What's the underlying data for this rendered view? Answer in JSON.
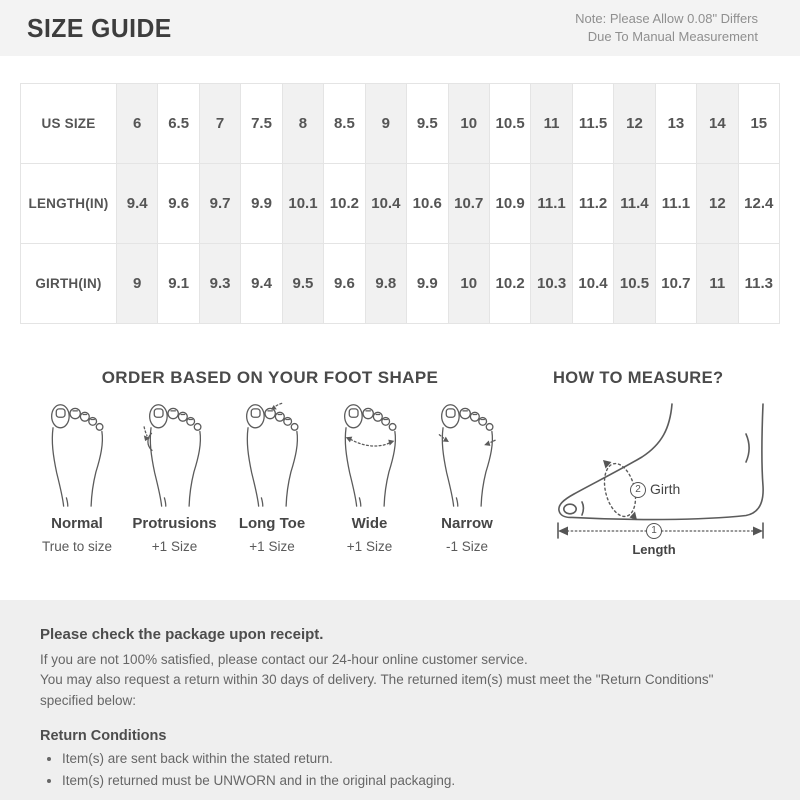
{
  "header": {
    "title": "SIZE GUIDE",
    "note_line1": "Note: Please Allow 0.08\" Differs",
    "note_line2": "Due To Manual Measurement"
  },
  "size_table": {
    "rows": [
      {
        "label": "US SIZE",
        "values": [
          "6",
          "6.5",
          "7",
          "7.5",
          "8",
          "8.5",
          "9",
          "9.5",
          "10",
          "10.5",
          "11",
          "11.5",
          "12",
          "13",
          "14",
          "15"
        ]
      },
      {
        "label": "LENGTH(IN)",
        "values": [
          "9.4",
          "9.6",
          "9.7",
          "9.9",
          "10.1",
          "10.2",
          "10.4",
          "10.6",
          "10.7",
          "10.9",
          "11.1",
          "11.2",
          "11.4",
          "11.1",
          "12",
          "12.4"
        ]
      },
      {
        "label": "GIRTH(IN)",
        "values": [
          "9",
          "9.1",
          "9.3",
          "9.4",
          "9.5",
          "9.6",
          "9.8",
          "9.9",
          "10",
          "10.2",
          "10.3",
          "10.4",
          "10.5",
          "10.7",
          "11",
          "11.3"
        ]
      }
    ]
  },
  "foot_shapes": {
    "heading": "ORDER BASED ON YOUR FOOT SHAPE",
    "items": [
      {
        "name": "Normal",
        "advice": "True to size",
        "icon": "foot-normal-icon"
      },
      {
        "name": "Protrusions",
        "advice": "+1 Size",
        "icon": "foot-protrusions-icon"
      },
      {
        "name": "Long Toe",
        "advice": "+1 Size",
        "icon": "foot-long-toe-icon"
      },
      {
        "name": "Wide",
        "advice": "+1 Size",
        "icon": "foot-wide-icon"
      },
      {
        "name": "Narrow",
        "advice": "-1 Size",
        "icon": "foot-narrow-icon"
      }
    ]
  },
  "measure": {
    "heading": "HOW TO MEASURE?",
    "girth_number": "2",
    "girth_label": "Girth",
    "length_number": "1",
    "length_label": "Length"
  },
  "footer": {
    "receipt_title": "Please check the package upon receipt.",
    "line1": "If you are not 100% satisfied, please contact our 24-hour online customer service.",
    "line2": "You may also request a return within 30 days of delivery. The returned item(s) must meet the \"Return Conditions\" specified below:",
    "return_title": "Return Conditions",
    "bullets": [
      "Item(s) are sent back within the stated return.",
      "Item(s) returned must be UNWORN and in the original packaging."
    ]
  },
  "colors": {
    "header_band": "#f3f3f3",
    "table_stripe": "#f1f1f1",
    "table_border": "#e4e4e4",
    "footer_bg": "#efefef",
    "text_dark": "#4a4a4a",
    "text_body": "#666666"
  }
}
